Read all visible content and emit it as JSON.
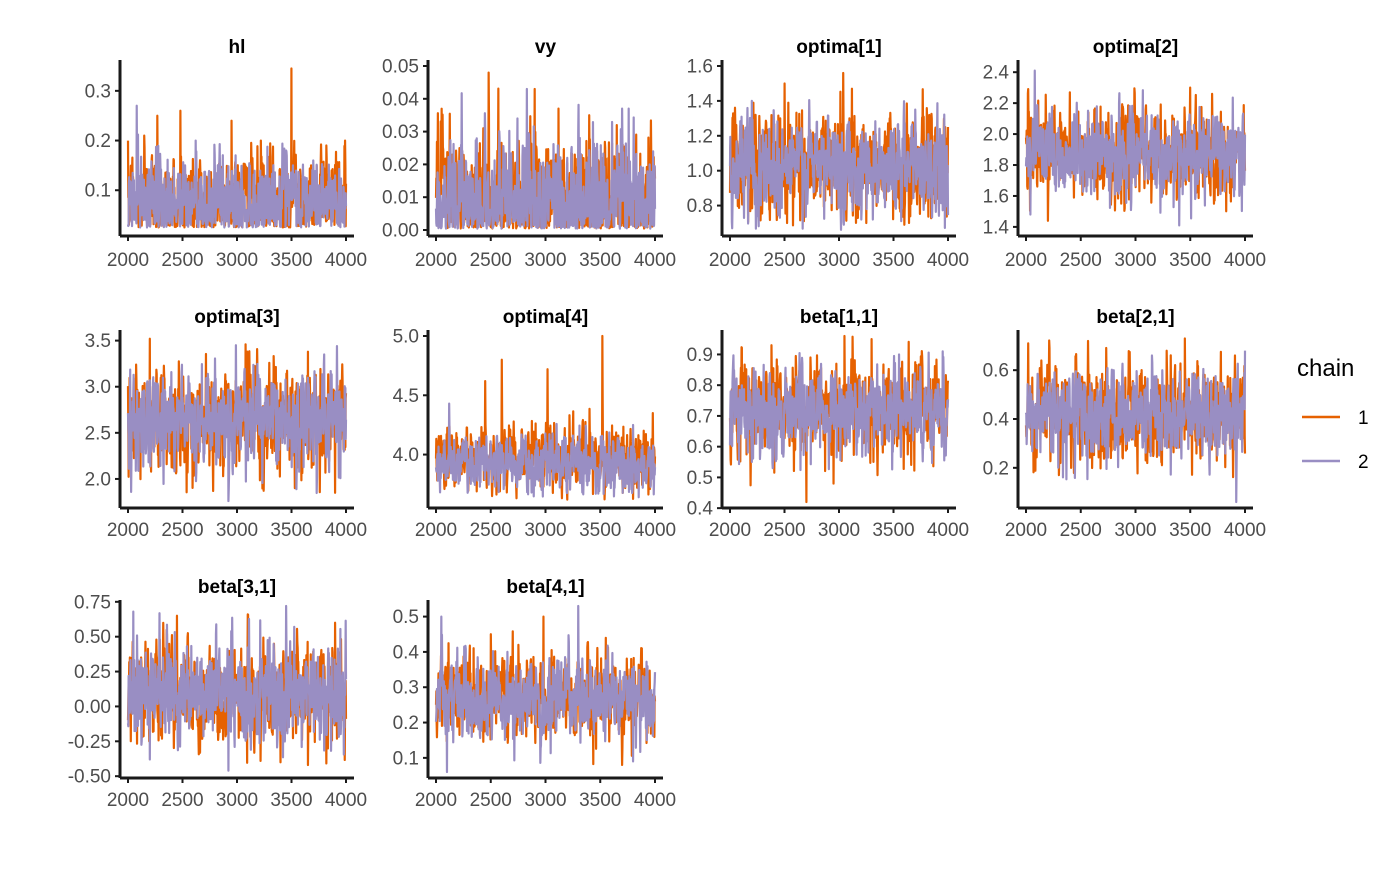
{
  "chart_data": {
    "type": "line",
    "legend": {
      "title": "chain",
      "placement": "right",
      "entries": [
        {
          "label": "1",
          "color": "#E66101"
        },
        {
          "label": "2",
          "color": "#998EC3"
        }
      ]
    },
    "x": {
      "range": [
        2000,
        4000
      ],
      "ticks": [
        "2000",
        "2500",
        "3000",
        "3500",
        "4000"
      ]
    },
    "grid": false,
    "panels": [
      {
        "title": "hl",
        "ylim": [
          0.02,
          0.35
        ],
        "yticks": [
          {
            "value": 0.1,
            "label": "0.1"
          },
          {
            "value": 0.2,
            "label": "0.2"
          },
          {
            "value": 0.3,
            "label": "0.3"
          }
        ],
        "series": [
          {
            "chain": "1",
            "center": 0.075,
            "spread": 0.045,
            "min": 0.025,
            "max": 0.345,
            "spikes": [
              [
                2150,
                0.21
              ],
              [
                2270,
                0.25
              ],
              [
                2480,
                0.26
              ],
              [
                2950,
                0.24
              ],
              [
                3220,
                0.2
              ],
              [
                3500,
                0.345
              ],
              [
                3820,
                0.19
              ],
              [
                3990,
                0.2
              ]
            ]
          },
          {
            "chain": "2",
            "center": 0.075,
            "spread": 0.042,
            "min": 0.025,
            "max": 0.27,
            "spikes": [
              [
                2080,
                0.27
              ],
              [
                2620,
                0.2
              ],
              [
                3450,
                0.18
              ],
              [
                3700,
                0.16
              ]
            ]
          }
        ]
      },
      {
        "title": "vy",
        "ylim": [
          0.0,
          0.05
        ],
        "yticks": [
          {
            "value": 0.0,
            "label": "0.00"
          },
          {
            "value": 0.01,
            "label": "0.01"
          },
          {
            "value": 0.02,
            "label": "0.02"
          },
          {
            "value": 0.03,
            "label": "0.03"
          },
          {
            "value": 0.04,
            "label": "0.04"
          },
          {
            "value": 0.05,
            "label": "0.05"
          }
        ],
        "series": [
          {
            "chain": "1",
            "center": 0.009,
            "spread": 0.01,
            "min": 0.0004,
            "max": 0.048,
            "spikes": [
              [
                2480,
                0.048
              ],
              [
                2900,
                0.043
              ],
              [
                3120,
                0.037
              ],
              [
                3400,
                0.035
              ],
              [
                3650,
                0.032
              ]
            ]
          },
          {
            "chain": "2",
            "center": 0.008,
            "spread": 0.009,
            "min": 0.0004,
            "max": 0.043,
            "spikes": [
              [
                2830,
                0.043
              ],
              [
                3700,
                0.037
              ],
              [
                3760,
                0.037
              ],
              [
                3300,
                0.03
              ]
            ]
          }
        ]
      },
      {
        "title": "optima[1]",
        "ylim": [
          0.66,
          1.6
        ],
        "yticks": [
          {
            "value": 0.8,
            "label": "0.8"
          },
          {
            "value": 1.0,
            "label": "1.0"
          },
          {
            "value": 1.2,
            "label": "1.2"
          },
          {
            "value": 1.4,
            "label": "1.4"
          },
          {
            "value": 1.6,
            "label": "1.6"
          }
        ],
        "series": [
          {
            "chain": "1",
            "center": 1.03,
            "spread": 0.14,
            "min": 0.68,
            "max": 1.56,
            "spikes": [
              [
                2500,
                1.5
              ],
              [
                3040,
                1.56
              ],
              [
                3120,
                1.47
              ],
              [
                3250,
                0.7
              ],
              [
                3600,
                0.69
              ]
            ]
          },
          {
            "chain": "2",
            "center": 1.03,
            "spread": 0.13,
            "min": 0.66,
            "max": 1.42,
            "spikes": [
              [
                2020,
                0.67
              ],
              [
                2200,
                1.4
              ],
              [
                3700,
                1.35
              ]
            ]
          }
        ]
      },
      {
        "title": "optima[2]",
        "ylim": [
          1.38,
          2.44
        ],
        "yticks": [
          {
            "value": 1.4,
            "label": "1.4"
          },
          {
            "value": 1.6,
            "label": "1.6"
          },
          {
            "value": 1.8,
            "label": "1.8"
          },
          {
            "value": 2.0,
            "label": "2.0"
          },
          {
            "value": 2.2,
            "label": "2.2"
          },
          {
            "value": 2.4,
            "label": "2.4"
          }
        ],
        "series": [
          {
            "chain": "1",
            "center": 1.87,
            "spread": 0.13,
            "min": 1.44,
            "max": 2.3,
            "spikes": [
              [
                2200,
                1.44
              ],
              [
                2400,
                2.27
              ],
              [
                3500,
                2.3
              ],
              [
                3700,
                2.26
              ]
            ]
          },
          {
            "chain": "2",
            "center": 1.86,
            "spread": 0.12,
            "min": 1.41,
            "max": 2.41,
            "spikes": [
              [
                2040,
                1.48
              ],
              [
                2080,
                2.41
              ],
              [
                3400,
                1.41
              ],
              [
                2850,
                2.2
              ]
            ]
          }
        ]
      },
      {
        "title": "optima[3]",
        "ylim": [
          1.75,
          3.55
        ],
        "yticks": [
          {
            "value": 2.0,
            "label": "2.0"
          },
          {
            "value": 2.5,
            "label": "2.5"
          },
          {
            "value": 3.0,
            "label": "3.0"
          },
          {
            "value": 3.5,
            "label": "3.5"
          }
        ],
        "series": [
          {
            "chain": "1",
            "center": 2.65,
            "spread": 0.25,
            "min": 1.85,
            "max": 3.52,
            "spikes": [
              [
                2200,
                3.52
              ],
              [
                2780,
                1.87
              ],
              [
                3080,
                3.46
              ],
              [
                3530,
                1.9
              ],
              [
                3650,
                3.38
              ],
              [
                3900,
                1.85
              ]
            ]
          },
          {
            "chain": "2",
            "center": 2.65,
            "spread": 0.23,
            "min": 1.76,
            "max": 3.45,
            "spikes": [
              [
                2920,
                1.76
              ],
              [
                2990,
                3.45
              ],
              [
                3800,
                3.35
              ]
            ]
          }
        ]
      },
      {
        "title": "optima[4]",
        "ylim": [
          3.6,
          5.0
        ],
        "yticks": [
          {
            "value": 4.0,
            "label": "4.0"
          },
          {
            "value": 4.5,
            "label": "4.5"
          },
          {
            "value": 5.0,
            "label": "5.0"
          }
        ],
        "series": [
          {
            "chain": "1",
            "center": 3.97,
            "spread": 0.12,
            "min": 3.62,
            "max": 5.0,
            "spikes": [
              [
                2450,
                4.62
              ],
              [
                2600,
                4.8
              ],
              [
                3020,
                4.72
              ],
              [
                3520,
                5.0
              ],
              [
                3980,
                4.35
              ],
              [
                3200,
                3.62
              ]
            ]
          },
          {
            "chain": "2",
            "center": 3.93,
            "spread": 0.11,
            "min": 3.64,
            "max": 4.43,
            "spikes": [
              [
                2120,
                4.43
              ],
              [
                3800,
                4.25
              ],
              [
                3850,
                3.64
              ]
            ]
          }
        ]
      },
      {
        "title": "beta[1,1]",
        "ylim": [
          0.42,
          0.96
        ],
        "yticks": [
          {
            "value": 0.4,
            "label": "0.4"
          },
          {
            "value": 0.5,
            "label": "0.5"
          },
          {
            "value": 0.6,
            "label": "0.6"
          },
          {
            "value": 0.7,
            "label": "0.7"
          },
          {
            "value": 0.8,
            "label": "0.8"
          },
          {
            "value": 0.9,
            "label": "0.9"
          }
        ],
        "series": [
          {
            "chain": "1",
            "center": 0.72,
            "spread": 0.07,
            "min": 0.42,
            "max": 0.96,
            "spikes": [
              [
                2700,
                0.42
              ],
              [
                2950,
                0.48
              ],
              [
                3050,
                0.96
              ],
              [
                3300,
                0.95
              ],
              [
                2380,
                0.93
              ]
            ]
          },
          {
            "chain": "2",
            "center": 0.72,
            "spread": 0.065,
            "min": 0.52,
            "max": 0.91,
            "spikes": [
              [
                3950,
                0.91
              ],
              [
                3550,
                0.9
              ],
              [
                2200,
                0.55
              ]
            ]
          }
        ]
      },
      {
        "title": "beta[2,1]",
        "ylim": [
          0.06,
          0.74
        ],
        "yticks": [
          {
            "value": 0.2,
            "label": "0.2"
          },
          {
            "value": 0.4,
            "label": "0.4"
          },
          {
            "value": 0.6,
            "label": "0.6"
          }
        ],
        "series": [
          {
            "chain": "1",
            "center": 0.42,
            "spread": 0.09,
            "min": 0.16,
            "max": 0.73,
            "spikes": [
              [
                2020,
                0.71
              ],
              [
                3450,
                0.73
              ],
              [
                2300,
                0.17
              ]
            ]
          },
          {
            "chain": "2",
            "center": 0.42,
            "spread": 0.085,
            "min": 0.06,
            "max": 0.68,
            "spikes": [
              [
                3920,
                0.06
              ],
              [
                3150,
                0.66
              ],
              [
                4000,
                0.68
              ]
            ]
          }
        ]
      },
      {
        "title": "beta[3,1]",
        "ylim": [
          -0.47,
          0.72
        ],
        "yticks": [
          {
            "value": -0.5,
            "label": "-0.50"
          },
          {
            "value": -0.25,
            "label": "-0.25"
          },
          {
            "value": 0.0,
            "label": "0.00"
          },
          {
            "value": 0.25,
            "label": "0.25"
          },
          {
            "value": 0.5,
            "label": "0.50"
          },
          {
            "value": 0.75,
            "label": "0.75"
          }
        ],
        "series": [
          {
            "chain": "1",
            "center": 0.1,
            "spread": 0.17,
            "min": -0.42,
            "max": 0.66,
            "spikes": [
              [
                2450,
                0.65
              ],
              [
                3100,
                0.66
              ],
              [
                3400,
                -0.4
              ],
              [
                3650,
                -0.42
              ],
              [
                3900,
                0.6
              ]
            ]
          },
          {
            "chain": "2",
            "center": 0.1,
            "spread": 0.16,
            "min": -0.46,
            "max": 0.72,
            "spikes": [
              [
                2920,
                -0.46
              ],
              [
                3450,
                0.72
              ],
              [
                2200,
                -0.38
              ]
            ]
          }
        ]
      },
      {
        "title": "beta[4,1]",
        "ylim": [
          0.06,
          0.53
        ],
        "yticks": [
          {
            "value": 0.1,
            "label": "0.1"
          },
          {
            "value": 0.2,
            "label": "0.2"
          },
          {
            "value": 0.3,
            "label": "0.3"
          },
          {
            "value": 0.4,
            "label": "0.4"
          },
          {
            "value": 0.5,
            "label": "0.5"
          }
        ],
        "series": [
          {
            "chain": "1",
            "center": 0.27,
            "spread": 0.055,
            "min": 0.08,
            "max": 0.5,
            "spikes": [
              [
                2980,
                0.5
              ],
              [
                3700,
                0.08
              ],
              [
                2500,
                0.45
              ],
              [
                3550,
                0.44
              ]
            ]
          },
          {
            "chain": "2",
            "center": 0.27,
            "spread": 0.05,
            "min": 0.06,
            "max": 0.53,
            "spikes": [
              [
                2100,
                0.06
              ],
              [
                2050,
                0.5
              ],
              [
                3300,
                0.53
              ],
              [
                3800,
                0.09
              ]
            ]
          }
        ]
      }
    ]
  }
}
